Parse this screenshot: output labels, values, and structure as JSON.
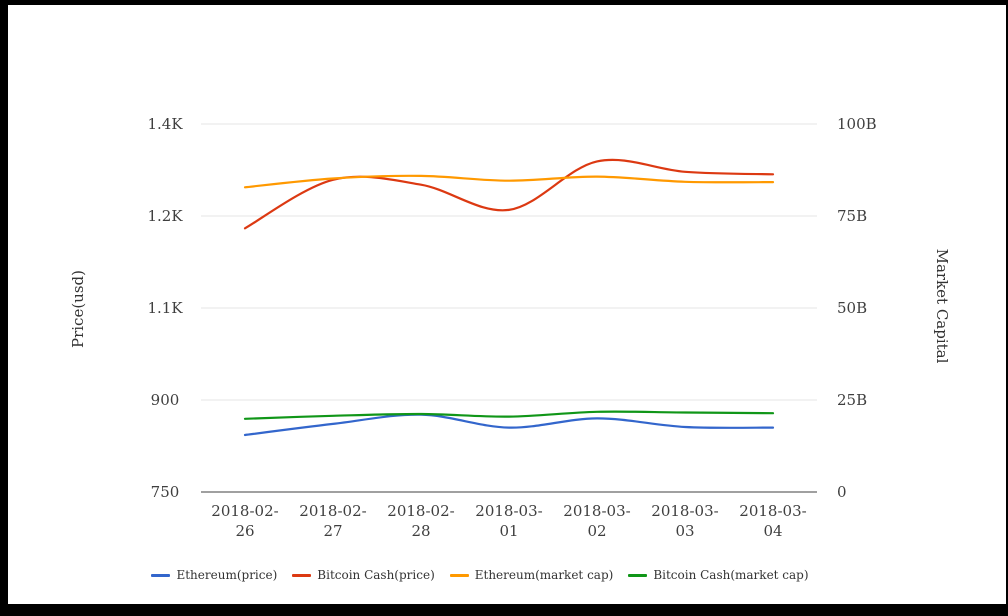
{
  "chart_data": {
    "type": "line",
    "title": "",
    "categories": [
      "2018-02-26",
      "2018-02-27",
      "2018-02-28",
      "2018-03-01",
      "2018-03-02",
      "2018-03-03",
      "2018-03-04"
    ],
    "series": [
      {
        "name": "Ethereum(price)",
        "axis": "left",
        "color": "#3366cc",
        "values": [
          843,
          861,
          876,
          855,
          870,
          856,
          855
        ]
      },
      {
        "name": "Bitcoin Cash(price)",
        "axis": "left",
        "color": "#dc3912",
        "values": [
          1180,
          1259,
          1251,
          1210,
          1289,
          1272,
          1268
        ]
      },
      {
        "name": "Ethereum(market cap)",
        "axis": "right",
        "color": "#ff9900",
        "values": [
          82.8,
          85.2,
          85.9,
          84.6,
          85.7,
          84.3,
          84.2
        ]
      },
      {
        "name": "Bitcoin Cash(market cap)",
        "axis": "right",
        "color": "#109618",
        "values": [
          19.9,
          20.7,
          21.2,
          20.5,
          21.8,
          21.6,
          21.4
        ]
      }
    ],
    "left_axis": {
      "label": "Price(usd)",
      "min": 750,
      "max": 1350,
      "tick_labels": [
        "1.4K",
        "1.2K",
        "1.1K",
        "900",
        "750"
      ]
    },
    "right_axis": {
      "label": "Market Capital",
      "min": 0,
      "max": 100,
      "tick_labels": [
        "100B",
        "75B",
        "50B",
        "25B",
        "0"
      ]
    },
    "legend_position": "bottom",
    "grid": true,
    "colors": {
      "gridline": "#e6e6e6",
      "baseline": "#424242",
      "tick_text": "#3f3f3f"
    }
  }
}
